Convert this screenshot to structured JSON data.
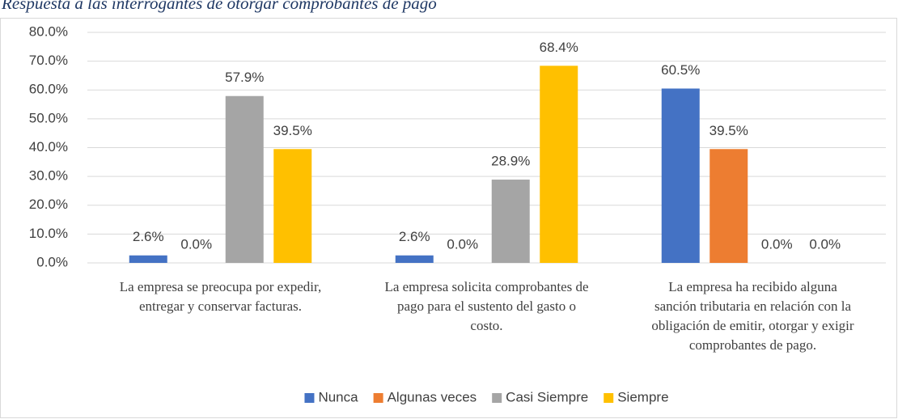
{
  "chart_data": {
    "type": "bar",
    "title": "Respuesta a las interrogantes de otorgar comprobantes de pago",
    "categories": [
      "La empresa se preocupa por expedir, entregar y conservar facturas.",
      "La empresa solicita comprobantes de pago para el sustento del gasto o costo.",
      "La empresa ha recibido alguna sanción tributaria en relación con la obligación de emitir, otorgar y exigir comprobantes de pago."
    ],
    "series": [
      {
        "name": "Nunca",
        "color": "#4472c4",
        "values": [
          2.6,
          2.6,
          60.5
        ],
        "value_labels": [
          "2.6%",
          "2.6%",
          "60.5%"
        ]
      },
      {
        "name": "Algunas veces",
        "color": "#ed7d31",
        "values": [
          0,
          0,
          39.5
        ],
        "value_labels": [
          "0.0%",
          "0.0%",
          "39.5%"
        ]
      },
      {
        "name": "Casi Siempre",
        "color": "#a5a5a5",
        "values": [
          57.9,
          28.9,
          0
        ],
        "value_labels": [
          "57.9%",
          "28.9%",
          "0.0%"
        ]
      },
      {
        "name": "Siempre",
        "color": "#ffc000",
        "values": [
          39.5,
          68.4,
          0
        ],
        "value_labels": [
          "39.5%",
          "68.4%",
          "0.0%"
        ]
      }
    ],
    "ylim": [
      0,
      80
    ],
    "yticks": [
      {
        "value": 0,
        "label": "0.0%"
      },
      {
        "value": 10,
        "label": "10.0%"
      },
      {
        "value": 20,
        "label": "20.0%"
      },
      {
        "value": 30,
        "label": "30.0%"
      },
      {
        "value": 40,
        "label": "40.0%"
      },
      {
        "value": 50,
        "label": "50.0%"
      },
      {
        "value": 60,
        "label": "60.0%"
      },
      {
        "value": 70,
        "label": "70.0%"
      },
      {
        "value": 80,
        "label": "80.0%"
      }
    ],
    "grid": true,
    "legend": "bottom"
  }
}
